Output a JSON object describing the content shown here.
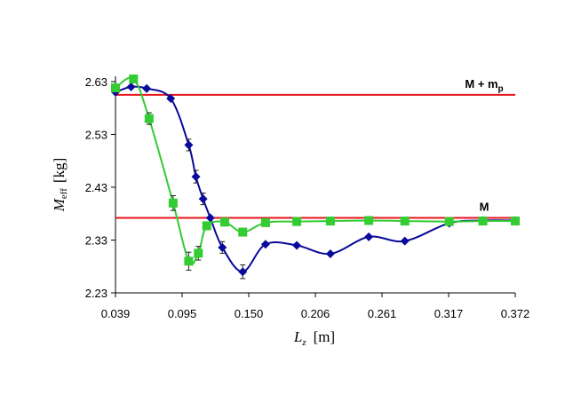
{
  "chart_data": {
    "type": "line",
    "title": "",
    "x_axis": {
      "label_main": "L",
      "label_sub": "z",
      "label_unit": "[m]",
      "range": [
        0.039,
        0.372
      ],
      "tick_labels": [
        "0.039",
        "0.095",
        "0.150",
        "0.206",
        "0.261",
        "0.317",
        "0.372"
      ]
    },
    "y_axis": {
      "label_main": "M",
      "label_sub": "eff",
      "label_unit": "[kg]",
      "range": [
        2.23,
        2.64
      ],
      "tick_labels": [
        "2.23",
        "2.33",
        "2.43",
        "2.53",
        "2.63"
      ]
    },
    "grid": false,
    "legend": "none",
    "reference_lines": [
      {
        "label_main": "M + m",
        "label_sub": "p",
        "y": 2.605,
        "color": "#e8141b"
      },
      {
        "label_main": "M",
        "label_sub": "",
        "y": 2.372,
        "color": "#e8141b"
      }
    ],
    "series": [
      {
        "marker": "diamond",
        "color": "#0a0a9a",
        "points": [
          {
            "x": 0.039,
            "y": 2.61
          },
          {
            "x": 0.052,
            "y": 2.62
          },
          {
            "x": 0.065,
            "y": 2.617
          },
          {
            "x": 0.085,
            "y": 2.598
          },
          {
            "x": 0.1,
            "y": 2.51,
            "err": 0.011
          },
          {
            "x": 0.106,
            "y": 2.45,
            "err": 0.012
          },
          {
            "x": 0.112,
            "y": 2.408,
            "err": 0.011
          },
          {
            "x": 0.118,
            "y": 2.372
          },
          {
            "x": 0.128,
            "y": 2.316,
            "err": 0.011
          },
          {
            "x": 0.145,
            "y": 2.27,
            "err": 0.013
          },
          {
            "x": 0.164,
            "y": 2.322
          },
          {
            "x": 0.19,
            "y": 2.32
          },
          {
            "x": 0.218,
            "y": 2.304
          },
          {
            "x": 0.25,
            "y": 2.336
          },
          {
            "x": 0.28,
            "y": 2.328
          },
          {
            "x": 0.317,
            "y": 2.362
          },
          {
            "x": 0.345,
            "y": 2.367
          },
          {
            "x": 0.372,
            "y": 2.367
          }
        ]
      },
      {
        "marker": "square",
        "color": "#33cc33",
        "points": [
          {
            "x": 0.039,
            "y": 2.618
          },
          {
            "x": 0.054,
            "y": 2.635
          },
          {
            "x": 0.067,
            "y": 2.56,
            "err": 0.011
          },
          {
            "x": 0.087,
            "y": 2.4,
            "err": 0.014
          },
          {
            "x": 0.1,
            "y": 2.29,
            "err": 0.017
          },
          {
            "x": 0.108,
            "y": 2.305,
            "err": 0.013
          },
          {
            "x": 0.115,
            "y": 2.357
          },
          {
            "x": 0.13,
            "y": 2.364
          },
          {
            "x": 0.145,
            "y": 2.345
          },
          {
            "x": 0.164,
            "y": 2.363
          },
          {
            "x": 0.19,
            "y": 2.365
          },
          {
            "x": 0.218,
            "y": 2.366
          },
          {
            "x": 0.25,
            "y": 2.367
          },
          {
            "x": 0.28,
            "y": 2.366
          },
          {
            "x": 0.317,
            "y": 2.365
          },
          {
            "x": 0.345,
            "y": 2.366
          },
          {
            "x": 0.372,
            "y": 2.366
          }
        ]
      }
    ]
  }
}
